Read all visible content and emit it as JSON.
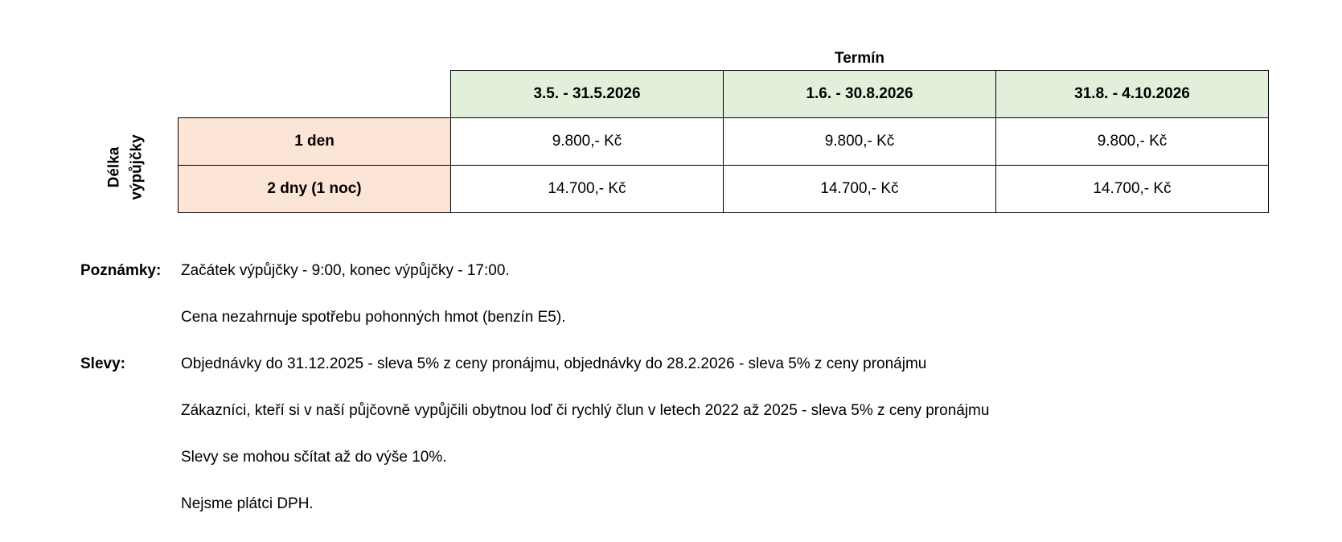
{
  "table": {
    "termin_header": "Termín",
    "side_label_line1": "Délka",
    "side_label_line2": "výpůjčky",
    "columns": [
      "3.5. - 31.5.2026",
      "1.6. - 30.8.2026",
      "31.8. - 4.10.2026"
    ],
    "rows": [
      {
        "label": "1 den",
        "prices": [
          "9.800,- Kč",
          "9.800,- Kč",
          "9.800,- Kč"
        ]
      },
      {
        "label": "2 dny (1 noc)",
        "prices": [
          "14.700,- Kč",
          "14.700,- Kč",
          "14.700,- Kč"
        ]
      }
    ],
    "colors": {
      "header_bg": "#e2efda",
      "row_header_bg": "#fce4d6"
    }
  },
  "notes": {
    "poznamky_label": "Poznámky:",
    "poznamky": [
      "Začátek výpůjčky - 9:00, konec výpůjčky - 17:00.",
      "Cena nezahrnuje spotřebu pohonných hmot (benzín E5)."
    ],
    "slevy_label": "Slevy:",
    "slevy": [
      "Objednávky do 31.12.2025 - sleva 5% z ceny pronájmu, objednávky do 28.2.2026 - sleva 5% z ceny pronájmu",
      "Zákazníci, kteří si v naší půjčovně vypůjčili obytnou loď či rychlý člun v letech 2022 až 2025 - sleva 5% z ceny pronájmu",
      "Slevy se mohou sčítat až do výše 10%.",
      "Nejsme plátci DPH."
    ]
  }
}
